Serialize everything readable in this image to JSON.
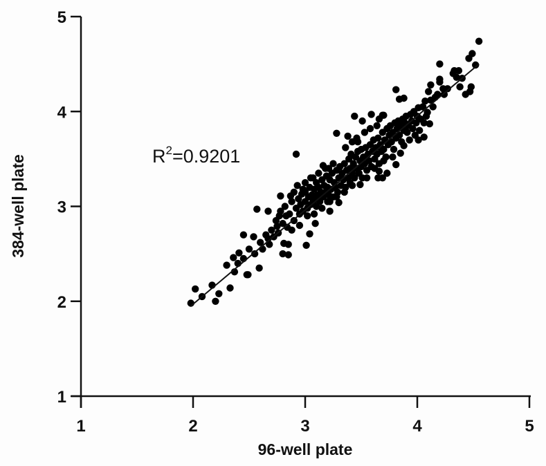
{
  "chart_data": {
    "type": "scatter",
    "title": "",
    "xlabel": "96-well plate",
    "ylabel": "384-well plate",
    "xlim": [
      1,
      5
    ],
    "ylim": [
      1,
      5
    ],
    "xticks": [
      "1",
      "2",
      "3",
      "4",
      "5"
    ],
    "yticks": [
      "1",
      "2",
      "3",
      "4",
      "5"
    ],
    "grid": false,
    "legend": null,
    "annotation": {
      "prefix": "R",
      "superscript": "2",
      "suffix": "=0.9201",
      "x": 1.64,
      "y": 3.55
    },
    "fit_line": {
      "x": [
        1.98,
        4.55
      ],
      "y": [
        1.95,
        4.5
      ]
    },
    "marker_color": "#000000",
    "points": [
      [
        1.98,
        1.98
      ],
      [
        2.02,
        2.13
      ],
      [
        2.08,
        2.05
      ],
      [
        2.17,
        2.17
      ],
      [
        2.2,
        2.0
      ],
      [
        2.23,
        2.08
      ],
      [
        2.33,
        2.14
      ],
      [
        2.3,
        2.38
      ],
      [
        2.37,
        2.31
      ],
      [
        2.48,
        2.28
      ],
      [
        2.45,
        2.7
      ],
      [
        2.59,
        2.35
      ],
      [
        2.41,
        2.51
      ],
      [
        2.36,
        2.46
      ],
      [
        2.49,
        2.28
      ],
      [
        2.54,
        2.68
      ],
      [
        2.67,
        2.66
      ],
      [
        2.57,
        2.97
      ],
      [
        2.67,
        2.95
      ],
      [
        2.78,
        3.11
      ],
      [
        2.87,
        3.11
      ],
      [
        2.97,
        3.13
      ],
      [
        2.92,
        3.55
      ],
      [
        2.77,
        2.9
      ],
      [
        2.83,
        2.9
      ],
      [
        2.75,
        2.79
      ],
      [
        2.81,
        2.61
      ],
      [
        2.85,
        2.6
      ],
      [
        2.8,
        2.5
      ],
      [
        2.85,
        2.49
      ],
      [
        3.01,
        2.59
      ],
      [
        3.04,
        2.71
      ],
      [
        3.09,
        2.82
      ],
      [
        3.07,
        3.3
      ],
      [
        3.16,
        3.43
      ],
      [
        3.21,
        3.4
      ],
      [
        3.28,
        3.77
      ],
      [
        3.38,
        3.74
      ],
      [
        3.44,
        3.95
      ],
      [
        3.51,
        3.9
      ],
      [
        3.59,
        3.97
      ],
      [
        3.7,
        3.96
      ],
      [
        3.47,
        3.68
      ],
      [
        3.53,
        3.78
      ],
      [
        3.3,
        3.04
      ],
      [
        3.22,
        2.95
      ],
      [
        3.49,
        3.23
      ],
      [
        3.66,
        3.37
      ],
      [
        3.73,
        3.35
      ],
      [
        3.65,
        3.3
      ],
      [
        3.69,
        3.3
      ],
      [
        3.81,
        3.44
      ],
      [
        3.85,
        3.56
      ],
      [
        3.88,
        3.64
      ],
      [
        3.98,
        3.75
      ],
      [
        4.01,
        3.7
      ],
      [
        4.06,
        3.73
      ],
      [
        3.81,
        4.23
      ],
      [
        3.84,
        4.13
      ],
      [
        3.88,
        4.14
      ],
      [
        3.69,
        3.96
      ],
      [
        3.66,
        3.92
      ],
      [
        3.94,
        3.97
      ],
      [
        4.01,
        4.04
      ],
      [
        4.09,
        3.99
      ],
      [
        4.06,
        3.88
      ],
      [
        4.11,
        3.87
      ],
      [
        4.07,
        4.11
      ],
      [
        4.12,
        4.12
      ],
      [
        4.1,
        4.21
      ],
      [
        4.12,
        4.28
      ],
      [
        4.2,
        4.5
      ],
      [
        4.2,
        4.34
      ],
      [
        4.2,
        4.31
      ],
      [
        4.23,
        4.24
      ],
      [
        4.27,
        4.24
      ],
      [
        4.18,
        4.18
      ],
      [
        4.24,
        4.18
      ],
      [
        4.32,
        4.4
      ],
      [
        4.33,
        4.43
      ],
      [
        4.37,
        4.43
      ],
      [
        4.35,
        4.36
      ],
      [
        4.4,
        4.35
      ],
      [
        4.38,
        4.26
      ],
      [
        4.48,
        4.26
      ],
      [
        4.47,
        4.21
      ],
      [
        4.43,
        4.18
      ],
      [
        4.46,
        4.56
      ],
      [
        4.49,
        4.61
      ],
      [
        4.52,
        4.49
      ],
      [
        4.55,
        4.74
      ],
      [
        2.4,
        2.4
      ],
      [
        2.45,
        2.45
      ],
      [
        2.5,
        2.55
      ],
      [
        2.55,
        2.5
      ],
      [
        2.6,
        2.62
      ],
      [
        2.62,
        2.55
      ],
      [
        2.65,
        2.7
      ],
      [
        2.68,
        2.6
      ],
      [
        2.7,
        2.75
      ],
      [
        2.72,
        2.68
      ],
      [
        2.74,
        2.85
      ],
      [
        2.76,
        2.72
      ],
      [
        2.78,
        2.95
      ],
      [
        2.8,
        2.82
      ],
      [
        2.82,
        3.0
      ],
      [
        2.84,
        2.78
      ],
      [
        2.86,
        2.92
      ],
      [
        2.88,
        3.05
      ],
      [
        2.9,
        2.85
      ],
      [
        2.92,
        2.98
      ],
      [
        2.94,
        3.08
      ],
      [
        2.95,
        2.92
      ],
      [
        2.96,
        3.02
      ],
      [
        2.98,
        2.95
      ],
      [
        3.0,
        3.05
      ],
      [
        3.0,
        3.15
      ],
      [
        3.02,
        2.98
      ],
      [
        3.03,
        3.1
      ],
      [
        3.04,
        3.2
      ],
      [
        3.05,
        3.02
      ],
      [
        3.06,
        3.12
      ],
      [
        3.07,
        3.05
      ],
      [
        3.08,
        3.18
      ],
      [
        3.09,
        3.08
      ],
      [
        3.1,
        3.25
      ],
      [
        3.1,
        3.0
      ],
      [
        3.11,
        3.12
      ],
      [
        3.12,
        3.2
      ],
      [
        3.13,
        3.05
      ],
      [
        3.14,
        3.15
      ],
      [
        3.15,
        3.28
      ],
      [
        3.16,
        3.1
      ],
      [
        3.17,
        3.22
      ],
      [
        3.18,
        3.15
      ],
      [
        3.19,
        3.32
      ],
      [
        3.2,
        3.05
      ],
      [
        3.2,
        3.2
      ],
      [
        3.21,
        3.12
      ],
      [
        3.22,
        3.28
      ],
      [
        3.23,
        3.18
      ],
      [
        3.24,
        3.35
      ],
      [
        3.25,
        3.1
      ],
      [
        3.26,
        3.25
      ],
      [
        3.27,
        3.2
      ],
      [
        3.28,
        3.38
      ],
      [
        3.29,
        3.15
      ],
      [
        3.3,
        3.3
      ],
      [
        3.31,
        3.42
      ],
      [
        3.32,
        3.22
      ],
      [
        3.33,
        3.35
      ],
      [
        3.34,
        3.28
      ],
      [
        3.35,
        3.45
      ],
      [
        3.36,
        3.2
      ],
      [
        3.37,
        3.38
      ],
      [
        3.38,
        3.3
      ],
      [
        3.39,
        3.5
      ],
      [
        3.4,
        3.25
      ],
      [
        3.4,
        3.4
      ],
      [
        3.41,
        3.55
      ],
      [
        3.42,
        3.35
      ],
      [
        3.43,
        3.45
      ],
      [
        3.44,
        3.3
      ],
      [
        3.45,
        3.52
      ],
      [
        3.46,
        3.4
      ],
      [
        3.47,
        3.58
      ],
      [
        3.48,
        3.35
      ],
      [
        3.49,
        3.48
      ],
      [
        3.5,
        3.6
      ],
      [
        3.5,
        3.42
      ],
      [
        3.51,
        3.3
      ],
      [
        3.52,
        3.52
      ],
      [
        3.53,
        3.45
      ],
      [
        3.54,
        3.62
      ],
      [
        3.55,
        3.38
      ],
      [
        3.56,
        3.55
      ],
      [
        3.57,
        3.48
      ],
      [
        3.58,
        3.65
      ],
      [
        3.59,
        3.42
      ],
      [
        3.6,
        3.58
      ],
      [
        3.61,
        3.7
      ],
      [
        3.62,
        3.5
      ],
      [
        3.63,
        3.62
      ],
      [
        3.64,
        3.55
      ],
      [
        3.65,
        3.72
      ],
      [
        3.66,
        3.45
      ],
      [
        3.67,
        3.65
      ],
      [
        3.68,
        3.58
      ],
      [
        3.69,
        3.78
      ],
      [
        3.7,
        3.6
      ],
      [
        3.71,
        3.7
      ],
      [
        3.72,
        3.52
      ],
      [
        3.73,
        3.82
      ],
      [
        3.74,
        3.65
      ],
      [
        3.75,
        3.75
      ],
      [
        3.76,
        3.85
      ],
      [
        3.77,
        3.68
      ],
      [
        3.78,
        3.78
      ],
      [
        3.79,
        3.6
      ],
      [
        3.8,
        3.88
      ],
      [
        3.81,
        3.72
      ],
      [
        3.82,
        3.82
      ],
      [
        3.83,
        3.9
      ],
      [
        3.84,
        3.75
      ],
      [
        3.85,
        3.85
      ],
      [
        3.86,
        3.68
      ],
      [
        3.87,
        3.92
      ],
      [
        3.88,
        3.8
      ],
      [
        3.89,
        3.88
      ],
      [
        3.9,
        3.95
      ],
      [
        3.91,
        3.78
      ],
      [
        3.92,
        3.85
      ],
      [
        3.93,
        3.7
      ],
      [
        3.95,
        3.9
      ],
      [
        3.96,
        3.82
      ],
      [
        3.97,
        4.0
      ],
      [
        3.99,
        3.88
      ],
      [
        4.0,
        3.95
      ],
      [
        4.02,
        3.8
      ],
      [
        4.03,
        3.92
      ],
      [
        4.05,
        4.05
      ],
      [
        4.08,
        3.95
      ],
      [
        4.14,
        4.05
      ],
      [
        4.16,
        4.15
      ],
      [
        3.0,
        3.25
      ],
      [
        2.98,
        3.18
      ],
      [
        3.05,
        3.3
      ],
      [
        3.12,
        3.35
      ],
      [
        3.18,
        3.4
      ],
      [
        3.25,
        3.45
      ],
      [
        3.15,
        2.98
      ],
      [
        3.22,
        3.05
      ],
      [
        3.28,
        3.1
      ],
      [
        3.35,
        3.15
      ],
      [
        3.42,
        3.22
      ],
      [
        3.55,
        3.3
      ],
      [
        3.62,
        3.4
      ],
      [
        3.7,
        3.48
      ],
      [
        3.78,
        3.52
      ],
      [
        3.36,
        3.62
      ],
      [
        3.42,
        3.68
      ],
      [
        3.46,
        3.72
      ],
      [
        3.58,
        3.82
      ],
      [
        3.64,
        3.85
      ],
      [
        2.9,
        3.15
      ],
      [
        2.93,
        3.22
      ],
      [
        3.02,
        2.9
      ],
      [
        3.08,
        2.92
      ],
      [
        2.88,
        2.75
      ],
      [
        2.95,
        2.8
      ]
    ]
  }
}
